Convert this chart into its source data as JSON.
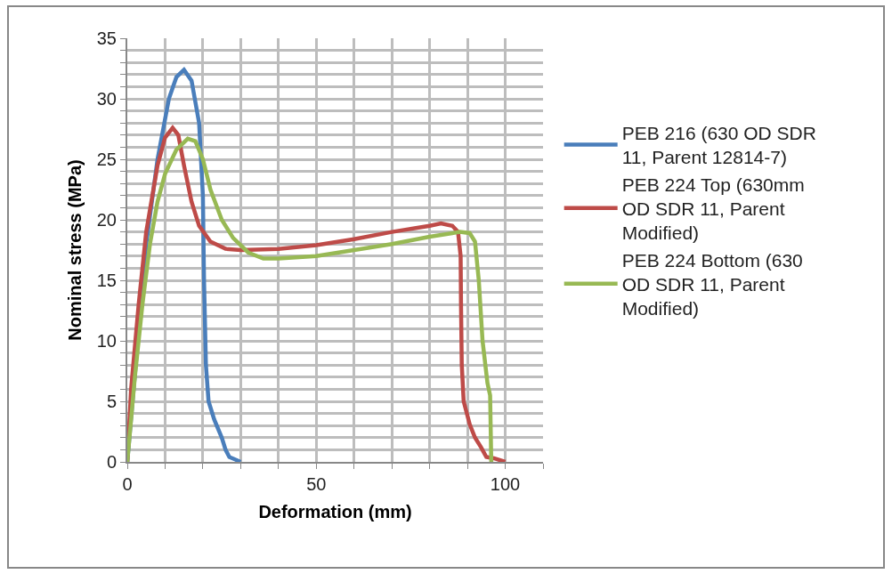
{
  "chart_data": {
    "type": "line",
    "xlabel": "Deformation (mm)",
    "ylabel": "Nominal stress (MPa)",
    "xlim": [
      0,
      110
    ],
    "ylim": [
      0,
      35
    ],
    "xticks": [
      0,
      {
        "value": 10,
        "label": null
      },
      {
        "value": 20,
        "label": null
      },
      {
        "value": 30,
        "label": null
      },
      {
        "value": 40,
        "label": null
      },
      50,
      {
        "value": 60,
        "label": null
      },
      {
        "value": 70,
        "label": null
      },
      {
        "value": 80,
        "label": null
      },
      {
        "value": 90,
        "label": null
      },
      100,
      {
        "value": 110,
        "label": null
      }
    ],
    "yticks": [
      0,
      {
        "value": 1,
        "label": null
      },
      {
        "value": 2,
        "label": null
      },
      {
        "value": 3,
        "label": null
      },
      {
        "value": 4,
        "label": null
      },
      5,
      {
        "value": 6,
        "label": null
      },
      {
        "value": 7,
        "label": null
      },
      {
        "value": 8,
        "label": null
      },
      {
        "value": 9,
        "label": null
      },
      10,
      {
        "value": 11,
        "label": null
      },
      {
        "value": 12,
        "label": null
      },
      {
        "value": 13,
        "label": null
      },
      {
        "value": 14,
        "label": null
      },
      15,
      {
        "value": 16,
        "label": null
      },
      {
        "value": 17,
        "label": null
      },
      {
        "value": 18,
        "label": null
      },
      {
        "value": 19,
        "label": null
      },
      20,
      {
        "value": 21,
        "label": null
      },
      {
        "value": 22,
        "label": null
      },
      {
        "value": 23,
        "label": null
      },
      {
        "value": 24,
        "label": null
      },
      25,
      {
        "value": 26,
        "label": null
      },
      {
        "value": 27,
        "label": null
      },
      {
        "value": 28,
        "label": null
      },
      {
        "value": 29,
        "label": null
      },
      30,
      {
        "value": 31,
        "label": null
      },
      {
        "value": 32,
        "label": null
      },
      {
        "value": 33,
        "label": null
      },
      {
        "value": 34,
        "label": null
      },
      35
    ],
    "grid": true,
    "legend": "right",
    "marker": "none",
    "line_style": "solid",
    "series": [
      {
        "name": "PEB 216 (630 OD SDR 11, Parent 12814-7)",
        "color": "#4a7ebb",
        "x": [
          0,
          5,
          8,
          11,
          13,
          15,
          17,
          19,
          20,
          20.3,
          20.8,
          21.5,
          23,
          25,
          26,
          27,
          28.5,
          30
        ],
        "values": [
          0,
          18,
          25,
          30,
          31.8,
          32.4,
          31.5,
          28,
          22,
          15,
          8,
          5,
          3.5,
          2,
          1,
          0.4,
          0.2,
          0
        ]
      },
      {
        "name": "PEB 224 Top (630mm OD SDR 11, Parent Modified)",
        "color": "#be4b48",
        "x": [
          0,
          1,
          3,
          5,
          8,
          10,
          12,
          13.5,
          15,
          17,
          19,
          22,
          26,
          30,
          40,
          50,
          60,
          70,
          80,
          83,
          86,
          87.5,
          88.2,
          88.3,
          88.5,
          89,
          90.6,
          92,
          93.6,
          95,
          97,
          100
        ],
        "values": [
          0,
          6,
          13,
          19,
          24.5,
          26.8,
          27.6,
          27,
          24.5,
          21.5,
          19.5,
          18.2,
          17.6,
          17.5,
          17.6,
          17.9,
          18.4,
          19,
          19.5,
          19.7,
          19.5,
          19,
          17,
          13,
          8,
          5,
          3.1,
          2,
          1.2,
          0.4,
          0.3,
          0
        ]
      },
      {
        "name": "PEB 224 Bottom (630 OD SDR 11, Parent Modified)",
        "color": "#98b954",
        "x": [
          0,
          2,
          4,
          6,
          8,
          10,
          13,
          16,
          18,
          20,
          22,
          25,
          28,
          32,
          36,
          40,
          50,
          60,
          70,
          80,
          88,
          90.6,
          92,
          93,
          94,
          95.3,
          96,
          96.3
        ],
        "values": [
          0,
          7,
          13,
          18,
          21.5,
          23.8,
          25.8,
          26.7,
          26.5,
          25,
          22.5,
          20,
          18.5,
          17.3,
          16.8,
          16.8,
          17,
          17.5,
          18,
          18.6,
          19,
          18.9,
          18.2,
          15,
          10,
          6.5,
          5.5,
          0
        ]
      }
    ]
  }
}
